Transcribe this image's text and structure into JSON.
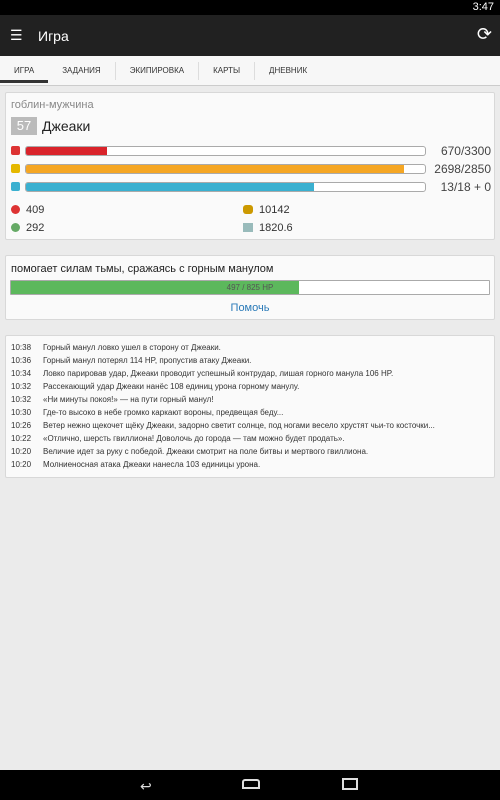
{
  "status": {
    "time": "3:47"
  },
  "header": {
    "title": "Игра"
  },
  "tabs": [
    "ИГРА",
    "ЗАДАНИЯ",
    "ЭКИПИРОВКА",
    "КАРТЫ",
    "ДНЕВНИК"
  ],
  "hero": {
    "race": "гоблин-мужчина",
    "level": "57",
    "name": "Джеаки",
    "bars": [
      {
        "label": "670/3300",
        "value": 670,
        "max": 3300,
        "color": "#d9232a"
      },
      {
        "label": "2698/2850",
        "value": 2698,
        "max": 2850,
        "color": "#f5a623"
      },
      {
        "label": "13/18 + 0",
        "value": 13,
        "max": 18,
        "color": "#3ab0d0"
      }
    ],
    "stats": [
      "409",
      "10142",
      "292",
      "1820.6"
    ]
  },
  "quest": {
    "text": "помогает силам тьмы, сражаясь с горным манулом",
    "bar": {
      "label": "497 / 825 HP",
      "value": 497,
      "max": 825,
      "color": "#5cb85c"
    },
    "button": "Помочь"
  },
  "log": [
    [
      "10:38",
      "Горный манул ловко ушел в сторону от Джеаки."
    ],
    [
      "10:36",
      "Горный манул потерял 114 HP, пропустив атаку Джеаки."
    ],
    [
      "10:34",
      "Ловко парировав удар, Джеаки проводит успешный контрудар, лишая горного манула 106 HP."
    ],
    [
      "10:32",
      "Рассекающий удар Джеаки нанёс 108 единиц урона горному манулу."
    ],
    [
      "10:32",
      "«Ни минуты покоя!» — на пути горный манул!"
    ],
    [
      "10:30",
      "Где-то высоко в небе громко каркают вороны, предвещая беду..."
    ],
    [
      "10:26",
      "Ветер нежно щекочет щёку Джеаки, задорно светит солнце, под ногами весело хрустят чьи-то косточки..."
    ],
    [
      "10:22",
      "«Отлично, шерсть гвиллиона! Доволочь до города — там можно будет продать»."
    ],
    [
      "10:20",
      "Величие идет за руку с победой. Джеаки смотрит на поле битвы и мертвого гвиллиона."
    ],
    [
      "10:20",
      "Молниеносная атака Джеаки нанесла 103 единицы урона."
    ]
  ]
}
